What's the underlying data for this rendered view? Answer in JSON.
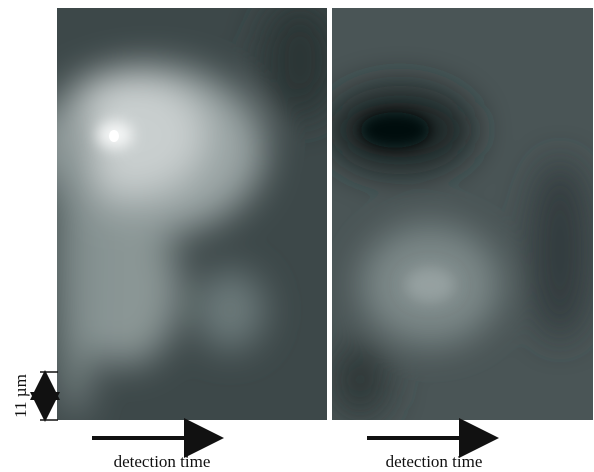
{
  "scale_bar": {
    "label": "11 µm"
  },
  "panels": [
    {
      "axis_label": "detection time"
    },
    {
      "axis_label": "detection time"
    }
  ]
}
